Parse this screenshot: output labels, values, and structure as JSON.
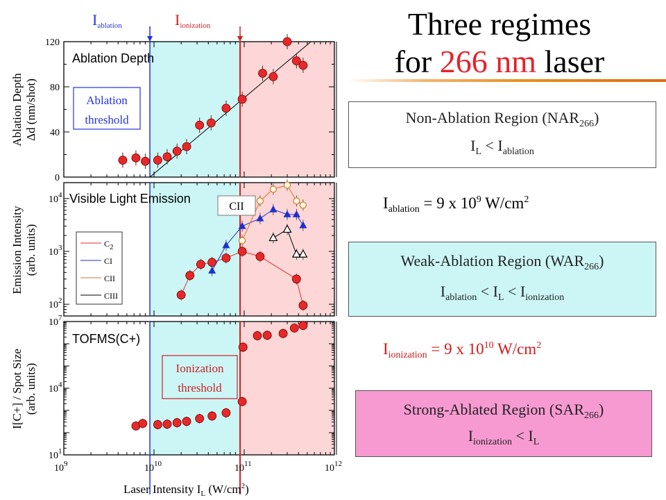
{
  "title": {
    "line1": "Three regimes",
    "line2_pre": "for ",
    "line2_red": "266 nm",
    "line2_post": " laser"
  },
  "colors": {
    "ablation_line": "#2233dd",
    "ionization_line": "#cc2020",
    "nar": "#ffffff",
    "war": "#ccf6f6",
    "sar": "#fdd7d7",
    "sar_box": "#f79ad2",
    "c2": "#e82828",
    "ci": "#1f2fd0",
    "title_accent": "#e8202a"
  },
  "markers": {
    "ablation": {
      "base": "I",
      "sub": "ablation",
      "x": 9000000000.0
    },
    "ionization": {
      "base": "I",
      "sub": "ionization",
      "x": 90000000000.0
    }
  },
  "regions": [
    {
      "name": "NAR",
      "box": {
        "line1": "Non-Ablation Region  (NAR",
        "line1_sub": "266",
        "line1_end": ")",
        "line2_base": "I",
        "line2_sub": "L",
        "line2_mid": " < I",
        "line2_sub2": "ablation",
        "line2_mid2": "",
        "line2_sub3": "",
        "line2_mid3": "",
        "line2_sub4": ""
      }
    },
    {
      "name": "WAR",
      "box": {
        "line1": "Weak-Ablation Region  (WAR",
        "line1_sub": "266",
        "line1_end": ")",
        "line2_base": "I",
        "line2_sub": "ablation",
        "line2_mid": " < I",
        "line2_sub2": "L",
        "line2_mid2": " < I",
        "line2_sub3": "ionization",
        "line2_mid3": "",
        "line2_sub4": ""
      }
    },
    {
      "name": "SAR",
      "box": {
        "line1": "Strong-Ablated Region  (SAR",
        "line1_sub": "266",
        "line1_end": ")",
        "line2_base": "I",
        "line2_sub": "ionization",
        "line2_mid": " < I",
        "line2_sub2": "L",
        "line2_mid2": "",
        "line2_sub3": "",
        "line2_mid3": "",
        "line2_sub4": ""
      }
    }
  ],
  "thresholds": {
    "ablation": {
      "base": "I",
      "sub": "ablation",
      "eq": " =  9 x 10",
      "exp": "9",
      "unit": " W/cm",
      "unit_exp": "2"
    },
    "ionization": {
      "base": "I",
      "sub": "ionization",
      "eq": " =  9 x 10",
      "exp": "10",
      "unit": " W/cm",
      "unit_exp": "2"
    }
  },
  "annotations": {
    "ablation_threshold": [
      "Ablation",
      "threshold"
    ],
    "ionization_threshold": [
      "Ionization",
      "threshold"
    ],
    "cii_tag": "CII"
  },
  "chart_data": [
    {
      "type": "scatter",
      "panel_label": "Ablation Depth",
      "ylabel": [
        "Ablation Depth",
        "Δd (nm/shot)"
      ],
      "xscale": "log",
      "xlim": [
        1000000000.0,
        1000000000000.0
      ],
      "yscale": "linear",
      "ylim": [
        0,
        120
      ],
      "yticks": [
        0,
        40,
        80,
        120
      ],
      "series": [
        {
          "name": "Ablation Depth",
          "marker": "filled-circle",
          "color": "#e82828",
          "x": [
            4500000000.0,
            6300000000.0,
            8000000000.0,
            11000000000.0,
            14000000000.0,
            18000000000.0,
            23000000000.0,
            32000000000.0,
            43000000000.0,
            63000000000.0,
            95000000000.0,
            160000000000.0,
            210000000000.0,
            300000000000.0,
            380000000000.0,
            450000000000.0
          ],
          "y": [
            15,
            17,
            14,
            15,
            18,
            23,
            27,
            46,
            48,
            61,
            69,
            92,
            89,
            120,
            103,
            99
          ]
        }
      ],
      "fit_line": {
        "x": [
          9000000000.0,
          550000000000.0
        ],
        "y": [
          0,
          120
        ]
      }
    },
    {
      "type": "line",
      "panel_label": "Visible Light Emission",
      "ylabel": [
        "Emission Intensity",
        "(arb. units)"
      ],
      "xscale": "log",
      "xlim": [
        1000000000.0,
        1000000000000.0
      ],
      "yscale": "log",
      "ylim": [
        60,
        20000
      ],
      "yticks": [
        {
          "base": "10",
          "exp": "2",
          "value": 100
        },
        {
          "base": "10",
          "exp": "3",
          "value": 1000
        },
        {
          "base": "10",
          "exp": "4",
          "value": 10000
        }
      ],
      "series": [
        {
          "name": "C",
          "name_sub": "2",
          "marker": "filled-circle",
          "color": "#e82828",
          "x": [
            20000000000.0,
            25000000000.0,
            33000000000.0,
            44000000000.0,
            63000000000.0,
            95000000000.0,
            150000000000.0,
            380000000000.0,
            450000000000.0
          ],
          "y": [
            150,
            350,
            570,
            620,
            750,
            1000,
            800,
            300,
            95
          ]
        },
        {
          "name": "CI",
          "marker": "filled-triangle",
          "color": "#1f2fd0",
          "x": [
            44000000000.0,
            63000000000.0,
            95000000000.0,
            150000000000.0,
            210000000000.0,
            300000000000.0,
            380000000000.0,
            450000000000.0
          ],
          "y": [
            430,
            1300,
            3000,
            4200,
            6200,
            5000,
            5000,
            3100
          ]
        },
        {
          "name": "CII",
          "marker": "open-circle",
          "color": "#d07828",
          "x": [
            95000000000.0,
            150000000000.0,
            210000000000.0,
            300000000000.0,
            380000000000.0,
            450000000000.0
          ],
          "y": [
            1600,
            9000,
            15000,
            18000,
            9000,
            7500
          ]
        },
        {
          "name": "CIII",
          "marker": "open-triangle",
          "color": "#000000",
          "x": [
            210000000000.0,
            300000000000.0,
            380000000000.0,
            450000000000.0
          ],
          "y": [
            1800,
            2600,
            880,
            880
          ]
        }
      ],
      "legend": "left"
    },
    {
      "type": "scatter",
      "panel_label": "TOFMS(C+)",
      "ylabel": [
        "I[C+] / Spot Size",
        "(arb. units)"
      ],
      "xlabel": "Laser Intensity I",
      "xlabel_sub": "L",
      "xlabel_unit": " (W/cm",
      "xlabel_unit_exp": "2",
      "xlabel_end": ")",
      "xscale": "log",
      "xlim": [
        1000000000.0,
        1000000000000.0
      ],
      "xticks": [
        {
          "base": "10",
          "exp": "9",
          "value": 1000000000.0
        },
        {
          "base": "10",
          "exp": "10",
          "value": 10000000000.0
        },
        {
          "base": "10",
          "exp": "11",
          "value": 100000000000.0
        },
        {
          "base": "10",
          "exp": "12",
          "value": 1000000000000.0
        }
      ],
      "yscale": "log",
      "ylim": [
        10,
        10000000
      ],
      "yticks": [
        {
          "base": "10",
          "exp": "1",
          "value": 10
        },
        {
          "base": "10",
          "exp": "4",
          "value": 10000
        },
        {
          "base": "10",
          "exp": "7",
          "value": 10000000
        }
      ],
      "series": [
        {
          "name": "TOFMS(C+)",
          "marker": "filled-circle",
          "color": "#e82828",
          "x": [
            6300000000.0,
            7500000000.0,
            11000000000.0,
            14000000000.0,
            18000000000.0,
            23000000000.0,
            32000000000.0,
            44000000000.0,
            63000000000.0,
            95000000000.0,
            97000000000.0,
            140000000000.0,
            180000000000.0,
            270000000000.0,
            360000000000.0,
            450000000000.0
          ],
          "y": [
            200,
            260,
            230,
            240,
            280,
            320,
            430,
            560,
            780,
            2500,
            700000,
            2300000,
            2400000,
            2900000,
            5100000,
            6600000
          ]
        }
      ]
    }
  ]
}
